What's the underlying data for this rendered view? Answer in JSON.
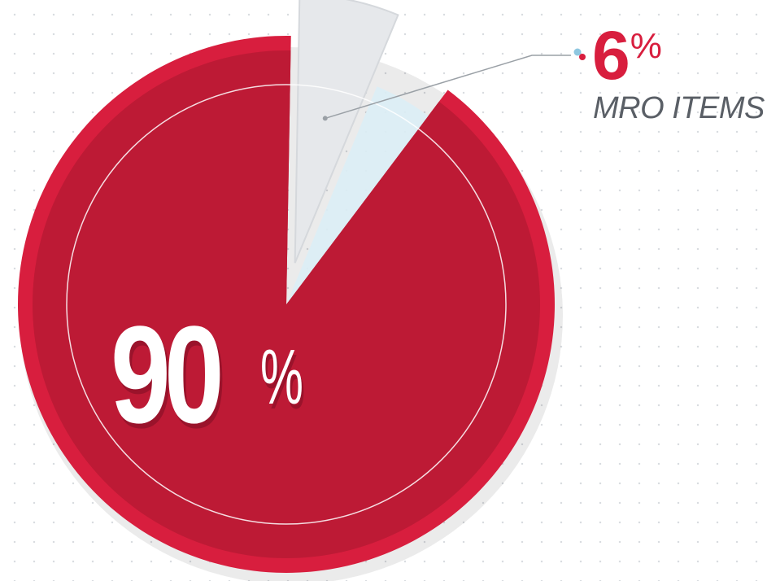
{
  "chart_data": {
    "type": "pie",
    "slices": [
      {
        "label": "",
        "value": 90,
        "display": "90",
        "color": "#bd1a35"
      },
      {
        "label": "MRO ITEMS",
        "value": 6,
        "display": "6",
        "color": "#e6e8eb"
      },
      {
        "label": "",
        "value": 4,
        "display": "",
        "color": "#dceef6"
      }
    ],
    "percent_sign": "%",
    "colors": {
      "main": "#bd1a35",
      "main_rim": "#d81e3e",
      "mro": "#e6e8eb",
      "other": "#dceef6",
      "label_red": "#d81e3e",
      "label_gray": "#5a5f66"
    }
  },
  "labels": {
    "big_value": "90",
    "big_percent": "%",
    "mro_value": "6",
    "mro_percent": "%",
    "mro_name": "MRO ITEMS"
  }
}
